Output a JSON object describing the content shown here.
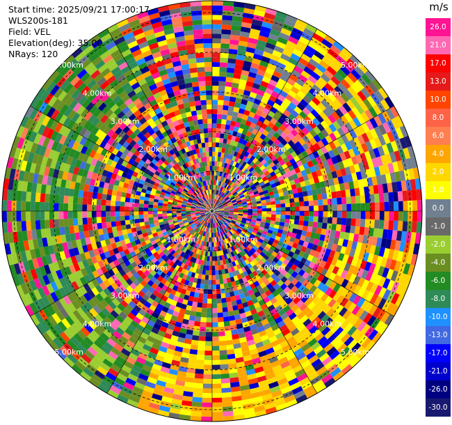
{
  "info": {
    "start_time": "Start time: 2025/09/21 17:00:17",
    "instrument": "WLS200s-181",
    "field": "Field: VEL",
    "elevation": "Elevation(deg): 35.00",
    "nrays": "NRays: 120"
  },
  "range_rings": [
    {
      "label": "1.00km",
      "km": 1
    },
    {
      "label": "2.00km",
      "km": 2
    },
    {
      "label": "3.00km",
      "km": 3
    },
    {
      "label": "4.00km",
      "km": 4
    },
    {
      "label": "5.00km",
      "km": 5
    }
  ],
  "colorbar": {
    "unit": "m/s",
    "ticks": [
      "26.0",
      "21.0",
      "17.0",
      "13.0",
      "10.0",
      "8.0",
      "6.0",
      "4.0",
      "2.0",
      "1.0",
      "0.0",
      "-1.0",
      "-2.0",
      "-4.0",
      "-6.0",
      "-8.0",
      "-10.0",
      "-13.0",
      "-17.0",
      "-21.0",
      "-26.0",
      "-30.0"
    ],
    "colors": [
      "#ff1493",
      "#ff69b4",
      "#ff0000",
      "#e61a1a",
      "#ff4500",
      "#ff6347",
      "#ff7f50",
      "#ffa500",
      "#ffd700",
      "#ffff00",
      "#708090",
      "#696969",
      "#9acd32",
      "#6b8e23",
      "#228b22",
      "#2e8b57",
      "#1e90ff",
      "#4169e1",
      "#0000ff",
      "#0000cd",
      "#000080",
      "#191970"
    ]
  }
}
